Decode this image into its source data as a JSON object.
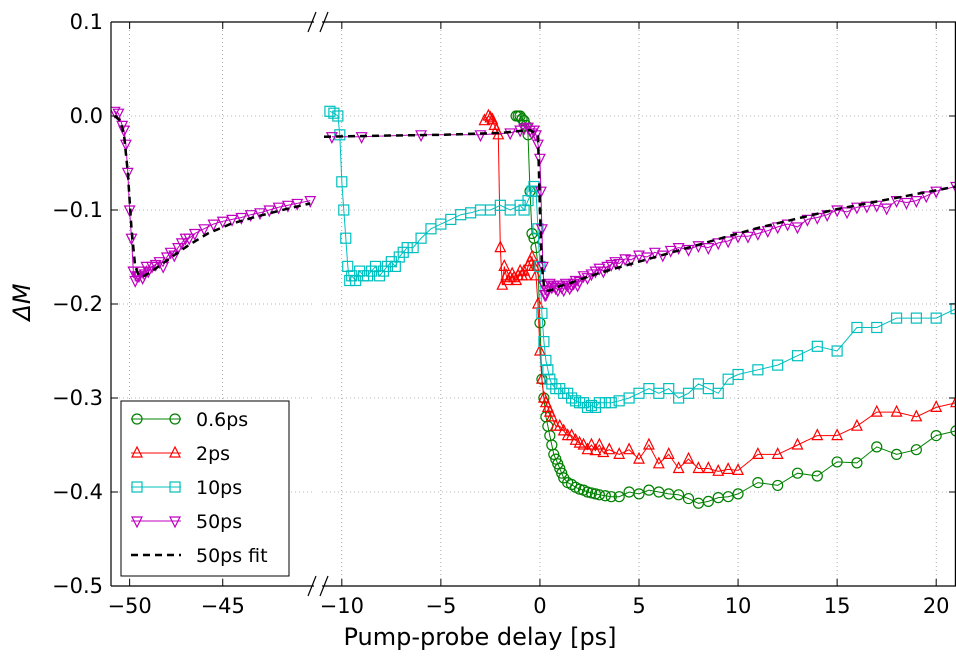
{
  "chart_data": {
    "type": "line",
    "xlabel": "Pump-probe delay [ps]",
    "ylabel": "ΔM",
    "ylim": [
      -0.5,
      0.1
    ],
    "yticks": [
      "0.1",
      "0.0",
      "−0.1",
      "−0.2",
      "−0.3",
      "−0.4",
      "−0.5"
    ],
    "ytick_values": [
      0.1,
      0.0,
      -0.1,
      -0.2,
      -0.3,
      -0.4,
      -0.5
    ],
    "grid": true,
    "legend_position": "lower-left",
    "broken_axis": {
      "left_segment": {
        "xlim": [
          -51,
          -40.1
        ],
        "ticks": [
          -50,
          -45
        ],
        "tick_labels": [
          "−50",
          "−45"
        ]
      },
      "right_segment": {
        "xlim": [
          -11,
          21
        ],
        "ticks": [
          -10,
          -5,
          0,
          5,
          10,
          15,
          20
        ],
        "tick_labels": [
          "−10",
          "−5",
          "0",
          "5",
          "10",
          "15",
          "20"
        ]
      }
    },
    "series": [
      {
        "name": "0.6ps",
        "color": "#008000",
        "marker": "circle",
        "linestyle": "solid",
        "x": [
          -1.2,
          -1.1,
          -1.0,
          -0.9,
          -0.8,
          -0.7,
          -0.6,
          -0.5,
          -0.4,
          -0.3,
          -0.2,
          -0.1,
          0.0,
          0.1,
          0.2,
          0.3,
          0.4,
          0.5,
          0.6,
          0.7,
          0.8,
          0.9,
          1.0,
          1.1,
          1.2,
          1.4,
          1.6,
          1.8,
          2.0,
          2.2,
          2.4,
          2.6,
          2.8,
          3.0,
          3.3,
          3.6,
          4.0,
          4.5,
          5.0,
          5.5,
          6.0,
          6.5,
          7.0,
          7.5,
          8.0,
          8.5,
          9.0,
          9.5,
          10.0,
          11.0,
          12.0,
          13.0,
          14.0,
          15.0,
          16.0,
          17.0,
          18.0,
          19.0,
          20.0,
          21.0
        ],
        "y": [
          0.0,
          0.0,
          0.0,
          -0.003,
          -0.005,
          -0.01,
          -0.02,
          -0.08,
          -0.125,
          -0.13,
          -0.14,
          -0.16,
          -0.22,
          -0.28,
          -0.3,
          -0.32,
          -0.33,
          -0.34,
          -0.35,
          -0.36,
          -0.365,
          -0.37,
          -0.375,
          -0.38,
          -0.385,
          -0.39,
          -0.392,
          -0.395,
          -0.397,
          -0.398,
          -0.4,
          -0.401,
          -0.402,
          -0.403,
          -0.404,
          -0.405,
          -0.405,
          -0.4,
          -0.402,
          -0.398,
          -0.4,
          -0.402,
          -0.403,
          -0.407,
          -0.412,
          -0.41,
          -0.406,
          -0.405,
          -0.402,
          -0.39,
          -0.393,
          -0.38,
          -0.383,
          -0.368,
          -0.369,
          -0.352,
          -0.36,
          -0.355,
          -0.34,
          -0.335
        ]
      },
      {
        "name": "2ps",
        "color": "#ff0000",
        "marker": "triangle-up",
        "linestyle": "solid",
        "x": [
          -2.8,
          -2.6,
          -2.5,
          -2.4,
          -2.3,
          -2.2,
          -2.1,
          -2.0,
          -1.9,
          -1.8,
          -1.7,
          -1.6,
          -1.5,
          -1.4,
          -1.3,
          -1.2,
          -1.1,
          -1.0,
          -0.9,
          -0.8,
          -0.7,
          -0.6,
          -0.5,
          -0.4,
          -0.3,
          -0.2,
          -0.1,
          0.0,
          0.1,
          0.2,
          0.3,
          0.4,
          0.5,
          0.6,
          0.8,
          1.0,
          1.2,
          1.4,
          1.6,
          1.8,
          2.0,
          2.2,
          2.4,
          2.6,
          2.8,
          3.0,
          3.2,
          3.5,
          4.0,
          4.5,
          5.0,
          5.5,
          6.0,
          6.5,
          7.0,
          7.5,
          8.0,
          8.5,
          9.0,
          9.5,
          10.0,
          11.0,
          12.0,
          13.0,
          14.0,
          15.0,
          16.0,
          17.0,
          18.0,
          19.0,
          20.0,
          21.0
        ],
        "y": [
          -0.005,
          0.0,
          -0.002,
          -0.004,
          -0.01,
          -0.015,
          -0.02,
          -0.14,
          -0.18,
          -0.16,
          -0.17,
          -0.175,
          -0.172,
          -0.168,
          -0.172,
          -0.175,
          -0.17,
          -0.165,
          -0.17,
          -0.165,
          -0.17,
          -0.16,
          -0.155,
          -0.15,
          -0.16,
          -0.17,
          -0.2,
          -0.25,
          -0.28,
          -0.3,
          -0.305,
          -0.31,
          -0.315,
          -0.32,
          -0.33,
          -0.33,
          -0.335,
          -0.34,
          -0.34,
          -0.345,
          -0.348,
          -0.35,
          -0.355,
          -0.35,
          -0.356,
          -0.35,
          -0.358,
          -0.355,
          -0.36,
          -0.355,
          -0.365,
          -0.35,
          -0.37,
          -0.36,
          -0.375,
          -0.365,
          -0.375,
          -0.375,
          -0.378,
          -0.376,
          -0.377,
          -0.36,
          -0.36,
          -0.35,
          -0.34,
          -0.34,
          -0.33,
          -0.315,
          -0.315,
          -0.32,
          -0.31,
          -0.305
        ]
      },
      {
        "name": "10ps",
        "color": "#00bfbf",
        "marker": "square",
        "linestyle": "solid",
        "x": [
          -10.6,
          -10.4,
          -10.2,
          -10.1,
          -10.0,
          -9.9,
          -9.8,
          -9.7,
          -9.6,
          -9.5,
          -9.3,
          -9.1,
          -8.9,
          -8.7,
          -8.5,
          -8.3,
          -8.1,
          -7.9,
          -7.7,
          -7.5,
          -7.3,
          -7.1,
          -6.9,
          -6.7,
          -6.4,
          -6.0,
          -5.5,
          -5.0,
          -4.5,
          -4.0,
          -3.5,
          -3.0,
          -2.5,
          -2.0,
          -1.5,
          -1.0,
          -0.8,
          -0.6,
          -0.4,
          -0.3,
          -0.2,
          -0.1,
          0.0,
          0.1,
          0.2,
          0.3,
          0.4,
          0.5,
          0.6,
          0.8,
          1.0,
          1.2,
          1.4,
          1.6,
          1.8,
          2.0,
          2.2,
          2.4,
          2.6,
          2.8,
          3.0,
          3.3,
          3.6,
          4.0,
          4.5,
          5.0,
          5.5,
          6.0,
          6.5,
          7.0,
          7.5,
          8.0,
          8.5,
          9.0,
          9.5,
          10.0,
          11.0,
          12.0,
          13.0,
          14.0,
          15.0,
          16.0,
          17.0,
          18.0,
          19.0,
          20.0,
          21.0
        ],
        "y": [
          0.005,
          0.003,
          0.0,
          -0.02,
          -0.07,
          -0.1,
          -0.13,
          -0.16,
          -0.175,
          -0.17,
          -0.175,
          -0.165,
          -0.17,
          -0.17,
          -0.165,
          -0.16,
          -0.17,
          -0.165,
          -0.16,
          -0.155,
          -0.16,
          -0.15,
          -0.145,
          -0.14,
          -0.14,
          -0.13,
          -0.12,
          -0.115,
          -0.11,
          -0.105,
          -0.103,
          -0.1,
          -0.1,
          -0.095,
          -0.1,
          -0.095,
          -0.1,
          -0.09,
          -0.08,
          -0.075,
          -0.08,
          -0.12,
          -0.16,
          -0.21,
          -0.24,
          -0.26,
          -0.27,
          -0.28,
          -0.285,
          -0.29,
          -0.29,
          -0.295,
          -0.295,
          -0.3,
          -0.303,
          -0.305,
          -0.305,
          -0.31,
          -0.308,
          -0.31,
          -0.305,
          -0.305,
          -0.305,
          -0.303,
          -0.3,
          -0.295,
          -0.29,
          -0.295,
          -0.29,
          -0.3,
          -0.295,
          -0.285,
          -0.29,
          -0.295,
          -0.28,
          -0.275,
          -0.27,
          -0.265,
          -0.255,
          -0.245,
          -0.25,
          -0.225,
          -0.225,
          -0.215,
          -0.215,
          -0.215,
          -0.205
        ]
      },
      {
        "name": "50ps",
        "color": "#bf00bf",
        "marker": "triangle-down",
        "linestyle": "solid",
        "x": [
          -50.8,
          -50.6,
          -50.4,
          -50.3,
          -50.2,
          -50.1,
          -50.0,
          -49.9,
          -49.8,
          -49.7,
          -49.6,
          -49.5,
          -49.4,
          -49.3,
          -49.2,
          -49.1,
          -49.0,
          -48.8,
          -48.6,
          -48.4,
          -48.2,
          -48.0,
          -47.8,
          -47.6,
          -47.4,
          -47.2,
          -47.0,
          -46.8,
          -46.5,
          -46.0,
          -45.5,
          -45.0,
          -44.5,
          -44.0,
          -43.5,
          -43.0,
          -42.5,
          -42.0,
          -41.5,
          -41.0,
          -40.3,
          -10.5,
          -9.0,
          -6.0,
          -3.0,
          -1.5,
          -1.0,
          -0.8,
          -0.6,
          -0.5,
          -0.4,
          -0.3,
          -0.2,
          -0.1,
          0.0,
          0.05,
          0.1,
          0.15,
          0.2,
          0.25,
          0.3,
          0.35,
          0.4,
          0.5,
          0.6,
          0.7,
          0.8,
          0.9,
          1.0,
          1.1,
          1.2,
          1.3,
          1.4,
          1.5,
          1.6,
          1.7,
          1.8,
          1.9,
          2.0,
          2.2,
          2.4,
          2.6,
          2.8,
          3.0,
          3.2,
          3.4,
          3.6,
          3.8,
          4.0,
          4.3,
          4.6,
          5.0,
          5.4,
          5.8,
          6.2,
          6.6,
          7.0,
          7.5,
          8.0,
          8.5,
          9.0,
          9.5,
          10.0,
          10.5,
          11.0,
          11.5,
          12.0,
          12.5,
          13.0,
          13.5,
          14.0,
          14.5,
          15.0,
          15.5,
          16.0,
          16.5,
          17.0,
          17.5,
          18.0,
          18.5,
          19.0,
          19.5,
          20.0,
          21.0
        ],
        "y": [
          0.005,
          0.003,
          -0.01,
          -0.015,
          -0.03,
          -0.06,
          -0.1,
          -0.13,
          -0.165,
          -0.175,
          -0.17,
          -0.17,
          -0.165,
          -0.172,
          -0.168,
          -0.16,
          -0.165,
          -0.16,
          -0.158,
          -0.155,
          -0.16,
          -0.15,
          -0.145,
          -0.148,
          -0.14,
          -0.135,
          -0.13,
          -0.13,
          -0.125,
          -0.12,
          -0.115,
          -0.112,
          -0.11,
          -0.108,
          -0.105,
          -0.103,
          -0.1,
          -0.097,
          -0.095,
          -0.093,
          -0.09,
          -0.022,
          -0.022,
          -0.02,
          -0.02,
          -0.018,
          -0.015,
          -0.013,
          -0.012,
          -0.015,
          -0.018,
          -0.015,
          -0.02,
          -0.03,
          -0.045,
          -0.08,
          -0.12,
          -0.16,
          -0.18,
          -0.19,
          -0.19,
          -0.185,
          -0.18,
          -0.178,
          -0.182,
          -0.18,
          -0.183,
          -0.185,
          -0.18,
          -0.182,
          -0.185,
          -0.178,
          -0.18,
          -0.183,
          -0.18,
          -0.178,
          -0.175,
          -0.18,
          -0.176,
          -0.17,
          -0.172,
          -0.168,
          -0.165,
          -0.162,
          -0.165,
          -0.16,
          -0.158,
          -0.155,
          -0.157,
          -0.152,
          -0.153,
          -0.148,
          -0.15,
          -0.145,
          -0.148,
          -0.143,
          -0.14,
          -0.142,
          -0.138,
          -0.14,
          -0.135,
          -0.133,
          -0.128,
          -0.128,
          -0.125,
          -0.122,
          -0.118,
          -0.115,
          -0.118,
          -0.11,
          -0.108,
          -0.105,
          -0.1,
          -0.102,
          -0.097,
          -0.096,
          -0.095,
          -0.098,
          -0.09,
          -0.092,
          -0.09,
          -0.085,
          -0.08,
          -0.075
        ]
      },
      {
        "name": "50ps fit",
        "color": "#000000",
        "marker": "none",
        "linestyle": "dashed",
        "x": [
          -50.8,
          -50.5,
          -50.3,
          -50.1,
          -49.9,
          -49.7,
          -49.5,
          -49.2,
          -48.8,
          -48.3,
          -47.6,
          -46.8,
          -45.8,
          -44.6,
          -43.2,
          -41.6,
          -40.3,
          -10.9,
          -8.0,
          -5.0,
          -2.0,
          -0.5,
          -0.1,
          0.0,
          0.1,
          0.2,
          0.3,
          0.4,
          0.6,
          0.8,
          1.0,
          1.5,
          2.0,
          3.0,
          4.0,
          5.0,
          6.0,
          7.0,
          8.0,
          9.0,
          10.0,
          11.0,
          12.0,
          13.0,
          14.0,
          15.0,
          16.0,
          17.0,
          18.0,
          19.0,
          20.0,
          21.0
        ],
        "y": [
          0.0,
          -0.005,
          -0.02,
          -0.06,
          -0.12,
          -0.16,
          -0.17,
          -0.17,
          -0.165,
          -0.158,
          -0.148,
          -0.137,
          -0.125,
          -0.115,
          -0.107,
          -0.099,
          -0.093,
          -0.022,
          -0.021,
          -0.02,
          -0.018,
          -0.015,
          -0.02,
          -0.1,
          -0.16,
          -0.18,
          -0.185,
          -0.186,
          -0.185,
          -0.183,
          -0.181,
          -0.178,
          -0.174,
          -0.167,
          -0.161,
          -0.155,
          -0.149,
          -0.143,
          -0.137,
          -0.131,
          -0.125,
          -0.119,
          -0.114,
          -0.109,
          -0.104,
          -0.099,
          -0.095,
          -0.091,
          -0.087,
          -0.083,
          -0.079,
          -0.075
        ]
      }
    ]
  }
}
